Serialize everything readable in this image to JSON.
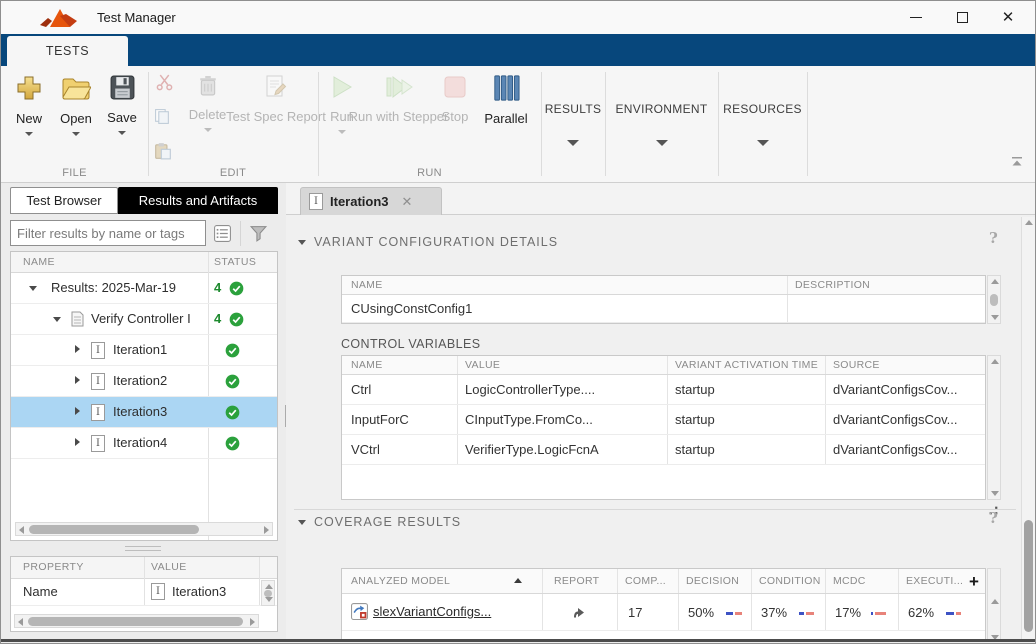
{
  "window": {
    "title": "Test Manager"
  },
  "ribbon": {
    "tab_label": "TESTS",
    "file": {
      "section_label": "FILE",
      "new_label": "New",
      "open_label": "Open",
      "save_label": "Save"
    },
    "edit": {
      "section_label": "EDIT",
      "delete_label": "Delete",
      "report_label": "Test Spec Report"
    },
    "run": {
      "section_label": "RUN",
      "run_label": "Run",
      "stepper_label": "Run with Stepper",
      "stop_label": "Stop",
      "parallel_label": "Parallel"
    },
    "results_label": "RESULTS",
    "environment_label": "ENVIRONMENT",
    "resources_label": "RESOURCES"
  },
  "left_panel": {
    "tab_test_browser": "Test Browser",
    "tab_results": "Results and Artifacts",
    "filter_placeholder": "Filter results by name or tags",
    "tree_headers": {
      "name": "NAME",
      "status": "STATUS"
    },
    "tree": [
      {
        "label": "Results: 2025-Mar-19",
        "count": "4"
      },
      {
        "label": "Verify Controller I",
        "count": "4"
      },
      {
        "label": "Iteration1"
      },
      {
        "label": "Iteration2"
      },
      {
        "label": "Iteration3"
      },
      {
        "label": "Iteration4"
      }
    ],
    "prop_headers": {
      "property": "PROPERTY",
      "value": "VALUE"
    },
    "prop_row": {
      "property": "Name",
      "value": "Iteration3"
    }
  },
  "main": {
    "tab_label": "Iteration3",
    "variant": {
      "title": "VARIANT CONFIGURATION DETAILS",
      "help": "?",
      "cfg_headers": {
        "name": "NAME",
        "description": "DESCRIPTION"
      },
      "cfg_row": {
        "name": "CUsingConstConfig1",
        "description": ""
      },
      "cv_label": "CONTROL VARIABLES",
      "cv_headers": [
        "NAME",
        "VALUE",
        "VARIANT ACTIVATION TIME",
        "SOURCE"
      ],
      "cv_rows": [
        [
          "Ctrl",
          "LogicControllerType....",
          "startup",
          "dVariantConfigsCov..."
        ],
        [
          "InputForC",
          "CInputType.FromCo...",
          "startup",
          "dVariantConfigsCov..."
        ],
        [
          "VCtrl",
          "VerifierType.LogicFcnA",
          "startup",
          "dVariantConfigsCov..."
        ]
      ]
    },
    "coverage": {
      "title": "COVERAGE RESULTS",
      "help": "?",
      "headers": [
        "ANALYZED MODEL",
        "REPORT",
        "COMP...",
        "DECISION",
        "CONDITION",
        "MCDC",
        "EXECUTI..."
      ],
      "row": {
        "model": "slexVariantConfigs...",
        "complexity": "17",
        "decision": "50%",
        "decision_pct": 50,
        "condition": "37%",
        "condition_pct": 37,
        "mcdc": "17%",
        "mcdc_pct": 17,
        "execution": "62%",
        "execution_pct": 62
      }
    }
  },
  "colors": {
    "ribbon_blue": "#07477c",
    "selection_blue": "#abd6f3",
    "status_green": "#2ba13c",
    "coverage_blue": "#3d52c4",
    "coverage_red": "#e8837a"
  }
}
